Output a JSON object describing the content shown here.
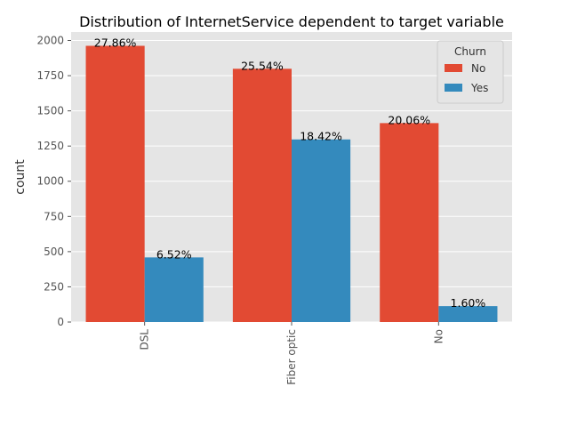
{
  "chart_data": {
    "type": "bar",
    "title": "Distribution of InternetService dependent to target variable",
    "xlabel": "",
    "ylabel": "count",
    "categories": [
      "DSL",
      "Fiber optic",
      "No"
    ],
    "series": [
      {
        "name": "No",
        "values": [
          1962,
          1799,
          1413
        ],
        "labels": [
          "27.86%",
          "25.54%",
          "20.06%"
        ],
        "color": "#e24a33"
      },
      {
        "name": "Yes",
        "values": [
          459,
          1297,
          113
        ],
        "labels": [
          "6.52%",
          "18.42%",
          "1.60%"
        ],
        "color": "#348abd"
      }
    ],
    "yticks": [
      0,
      250,
      500,
      750,
      1000,
      1250,
      1500,
      1750,
      2000
    ],
    "ylim": [
      0,
      2060
    ],
    "grid": true,
    "background": "#e5e5e5",
    "legend": {
      "title": "Churn",
      "placement": "top-right"
    }
  }
}
